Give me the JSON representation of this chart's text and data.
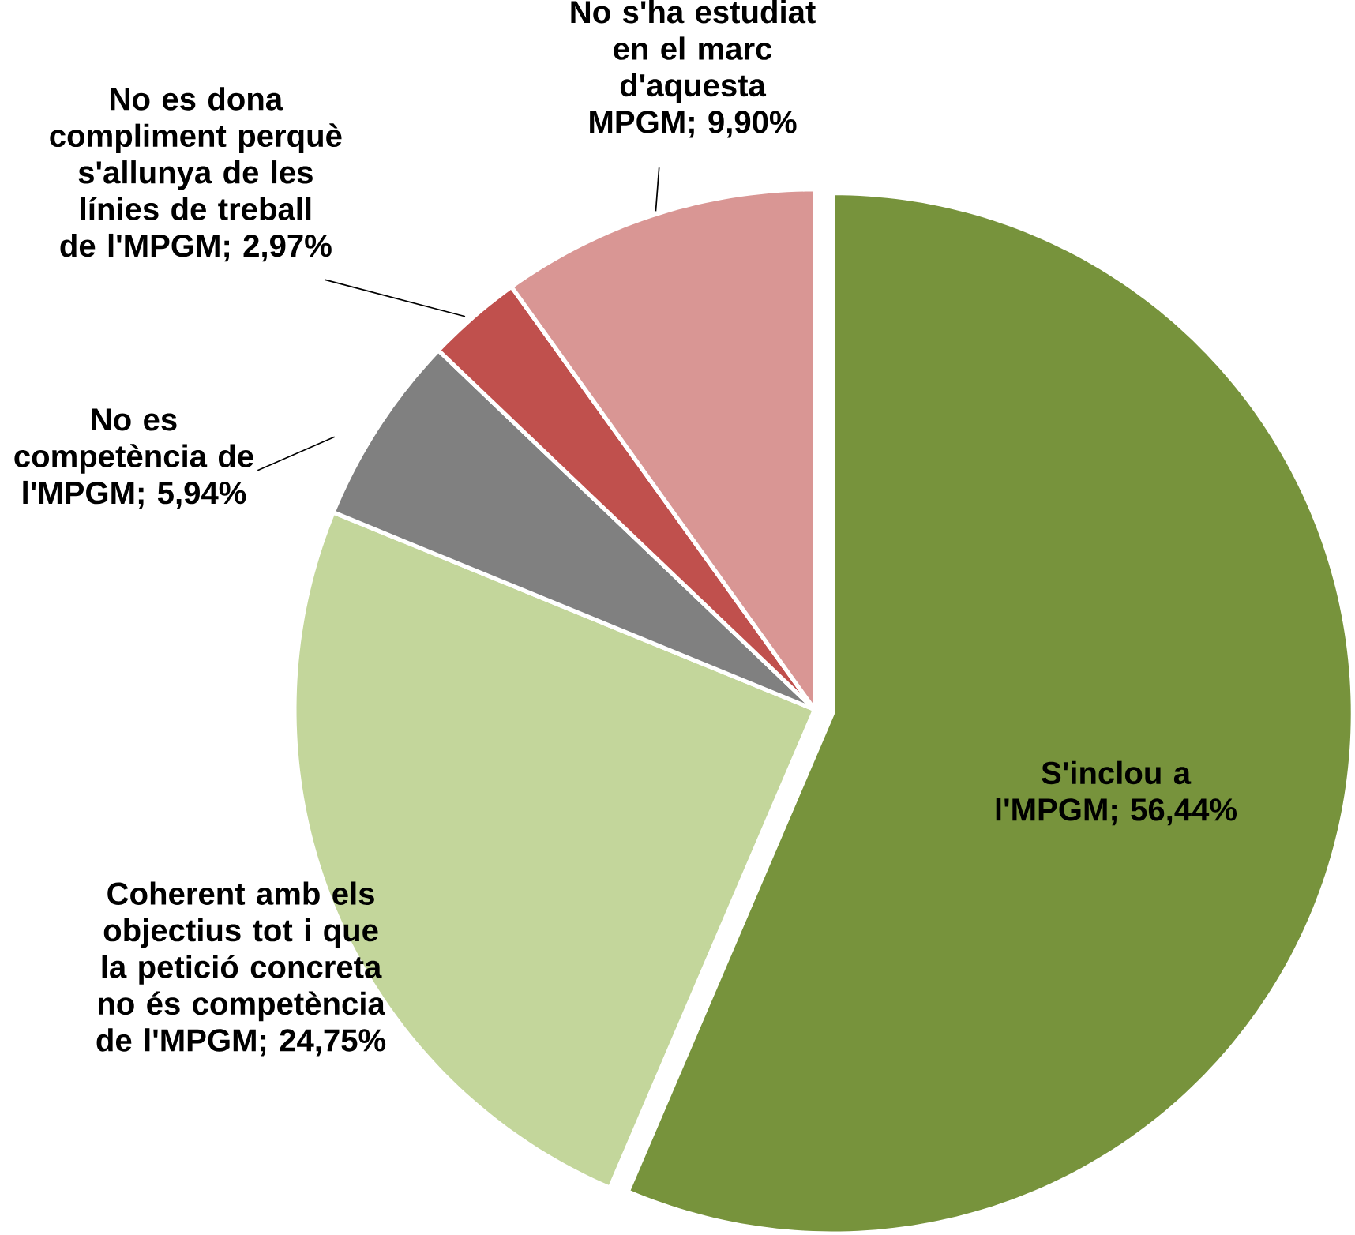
{
  "chart_data": {
    "type": "pie",
    "categories": [
      "S'inclou a l'MPGM; 56,44%",
      "Coherent amb els objectius tot i que la petició concreta no és competència de l'MPGM; 24,75%",
      "No es competència de l'MPGM; 5,94%",
      "No es dona compliment perquè s'allunya de les línies de treball de l'MPGM; 2,97%",
      "No s'ha estudiat en el marc d'aquesta MPGM; 9,90%"
    ],
    "values": [
      56.44,
      24.75,
      5.94,
      2.97,
      9.9
    ],
    "colors": [
      "#77933c",
      "#c3d69b",
      "#808080",
      "#c0504d",
      "#d99694"
    ]
  }
}
